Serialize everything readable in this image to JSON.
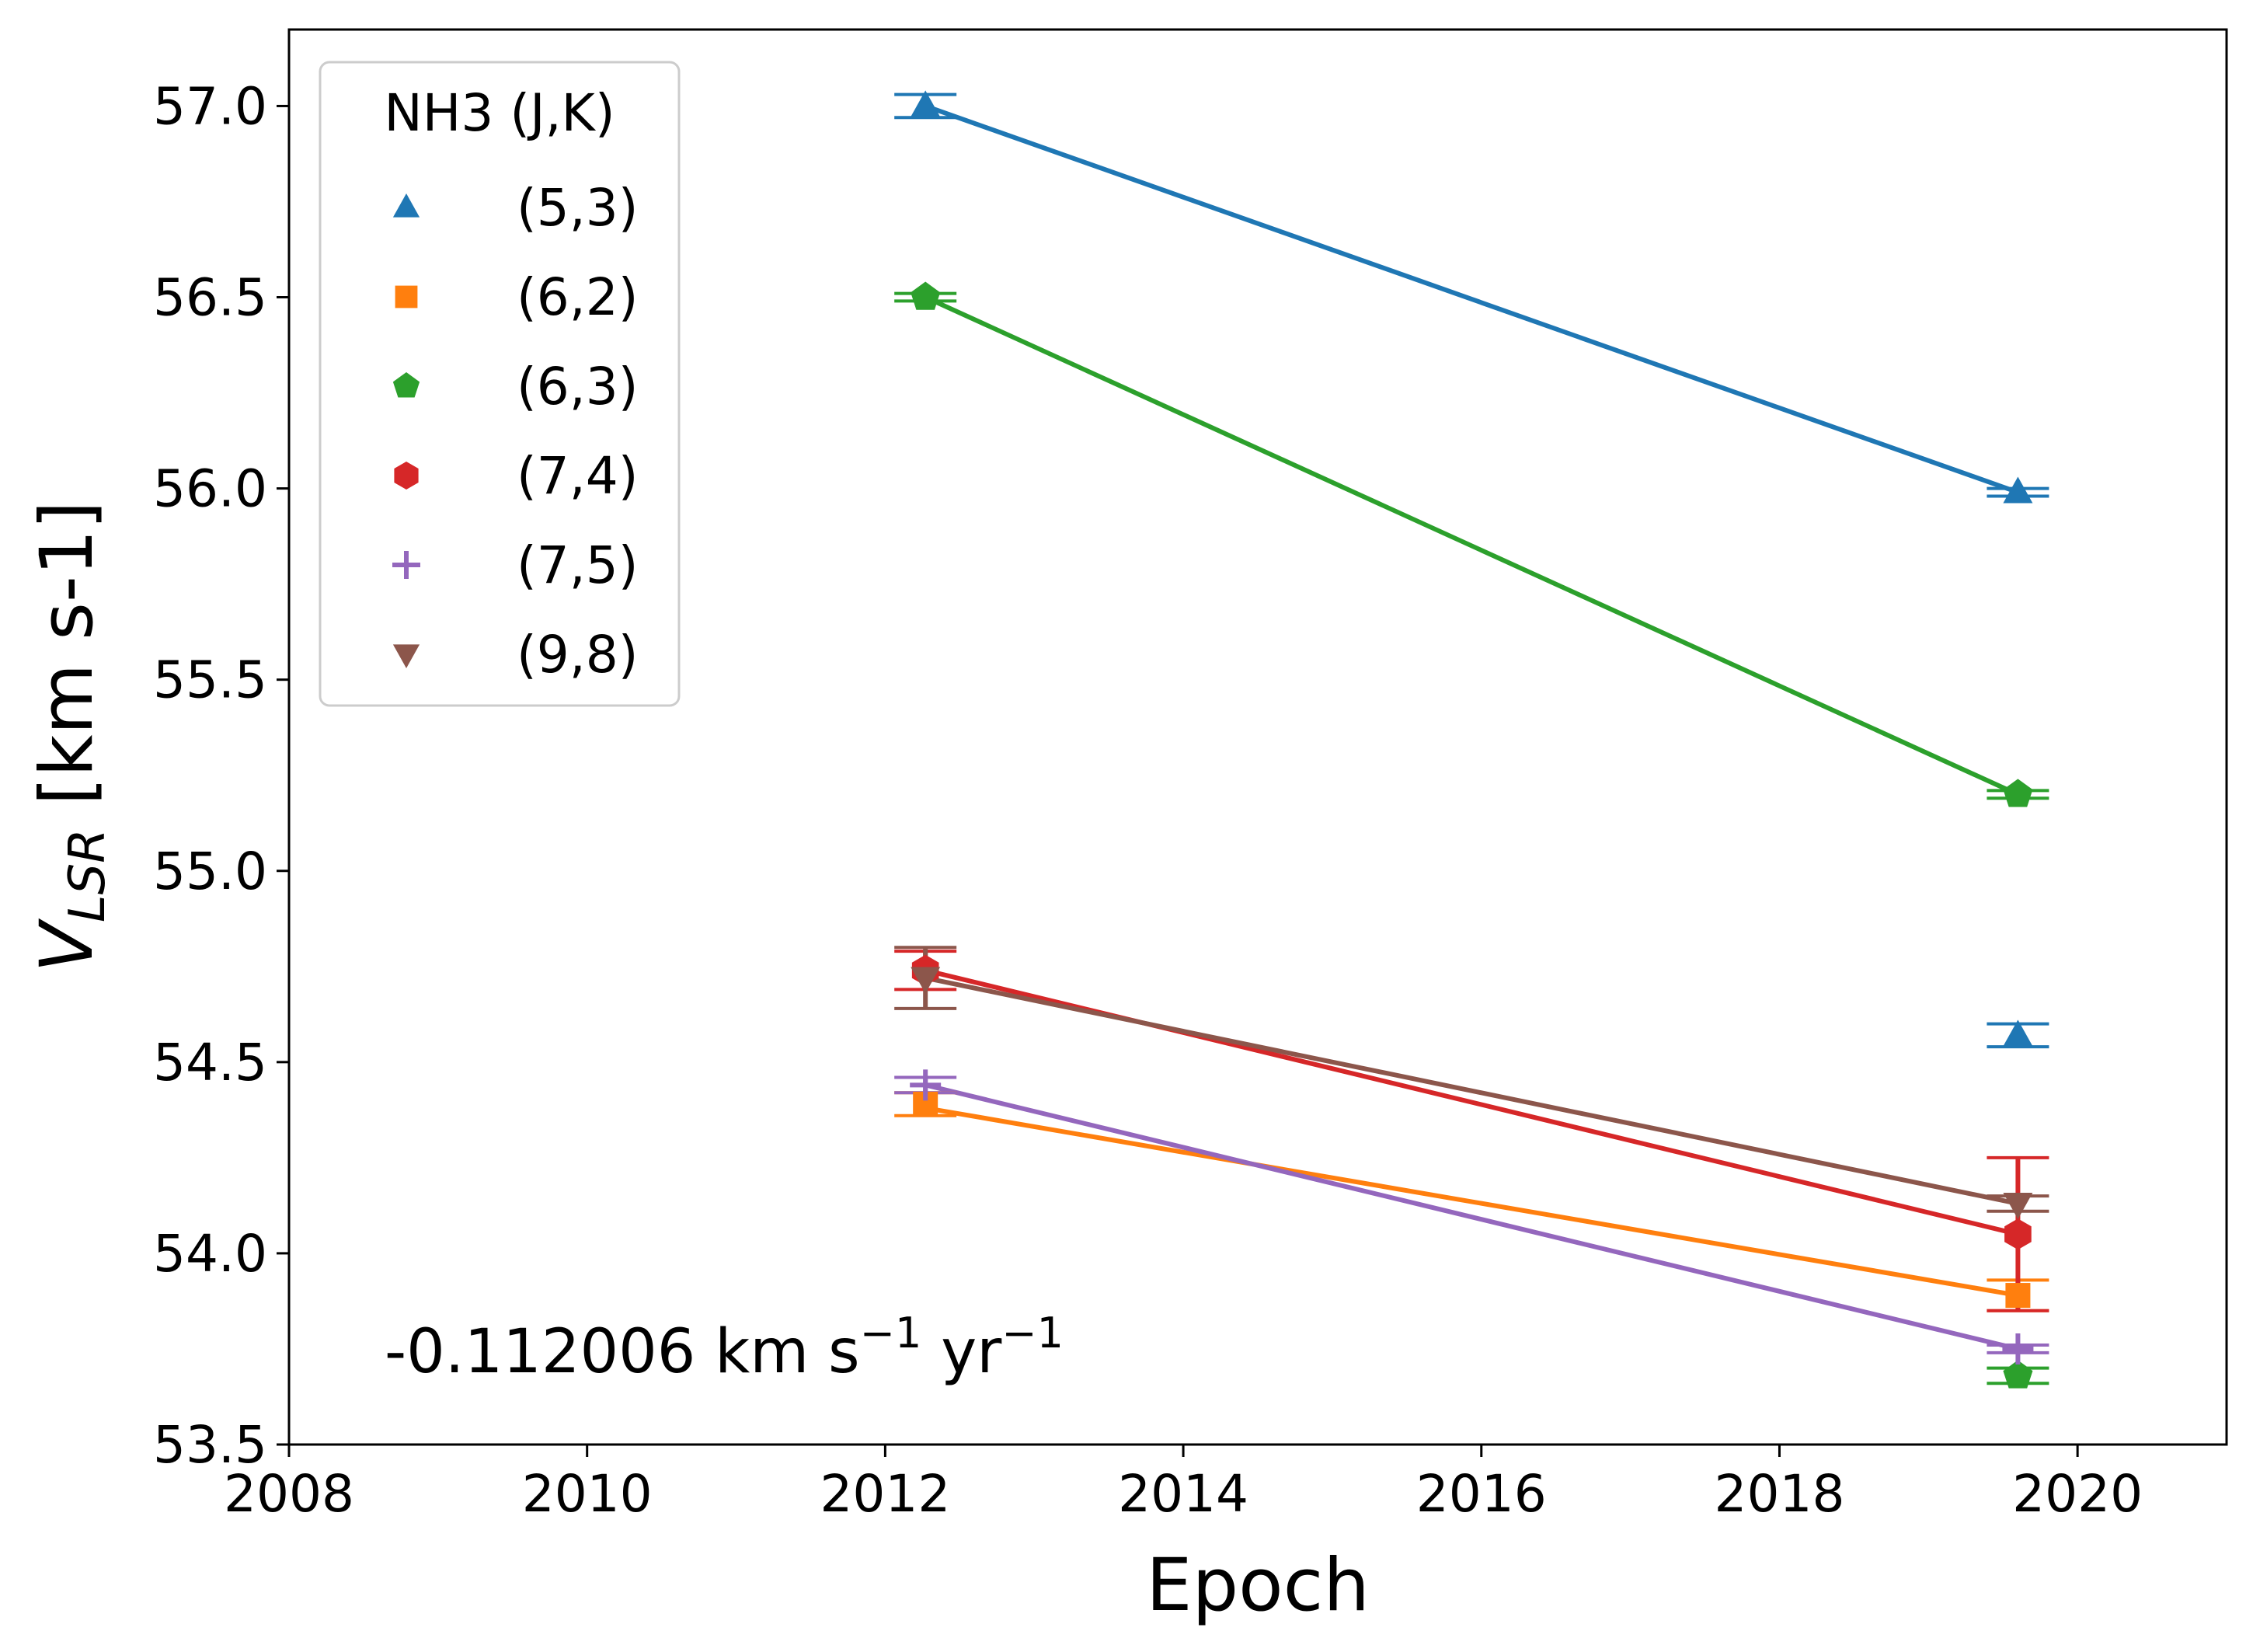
{
  "chart_data": {
    "type": "scatter",
    "xlabel": "Epoch",
    "ylabel": {
      "main": "V",
      "sub": "LSR",
      "units": " [km s-1]"
    },
    "xlim": [
      2008,
      2021
    ],
    "ylim": [
      53.5,
      57.2
    ],
    "xticks": [
      "2008",
      "2010",
      "2012",
      "2014",
      "2016",
      "2018",
      "2020"
    ],
    "yticks": [
      "53.5",
      "54.0",
      "54.5",
      "55.0",
      "55.5",
      "56.0",
      "56.5",
      "57.0"
    ],
    "legend": {
      "title": "NH3 (J,K)",
      "position": "top-left"
    },
    "annotation": {
      "prefix": "-0.112006 km s",
      "exp1": "−1",
      "mid": " yr",
      "exp2": "−1"
    },
    "series": [
      {
        "name": "(5,3)",
        "color": "#1f77b4",
        "marker": "triangle-up",
        "line": [
          [
            2012.27,
            57.0
          ],
          [
            2019.6,
            55.99
          ]
        ],
        "points": [
          {
            "x": 2012.27,
            "y": 57.0,
            "err": 0.03
          },
          {
            "x": 2019.6,
            "y": 55.99,
            "err": 0.01
          },
          {
            "x": 2019.6,
            "y": 54.57,
            "err": 0.03
          }
        ]
      },
      {
        "name": "(6,2)",
        "color": "#ff7f0e",
        "marker": "square",
        "line": [
          [
            2012.27,
            54.38
          ],
          [
            2019.6,
            53.89
          ]
        ],
        "points": [
          {
            "x": 2012.27,
            "y": 54.39,
            "err": 0.03
          },
          {
            "x": 2019.6,
            "y": 53.89,
            "err": 0.04
          }
        ]
      },
      {
        "name": "(6,3)",
        "color": "#2ca02c",
        "marker": "pentagon",
        "line": [
          [
            2012.27,
            56.5
          ],
          [
            2019.6,
            55.2
          ]
        ],
        "points": [
          {
            "x": 2012.27,
            "y": 56.5,
            "err": 0.01
          },
          {
            "x": 2019.6,
            "y": 55.2,
            "err": 0.01
          },
          {
            "x": 2019.6,
            "y": 53.68,
            "err": 0.02
          }
        ]
      },
      {
        "name": "(7,4)",
        "color": "#d62728",
        "marker": "hexagon",
        "line": [
          [
            2012.27,
            54.74
          ],
          [
            2019.6,
            54.05
          ]
        ],
        "points": [
          {
            "x": 2012.27,
            "y": 54.74,
            "err": 0.05
          },
          {
            "x": 2019.6,
            "y": 54.05,
            "err": 0.2
          }
        ]
      },
      {
        "name": "(7,5)",
        "color": "#9467bd",
        "marker": "plus",
        "line": [
          [
            2012.27,
            54.44
          ],
          [
            2019.6,
            53.75
          ]
        ],
        "points": [
          {
            "x": 2012.27,
            "y": 54.44,
            "err": 0.02
          },
          {
            "x": 2019.6,
            "y": 53.75,
            "err": 0.01
          }
        ]
      },
      {
        "name": "(9,8)",
        "color": "#8c564b",
        "marker": "triangle-down",
        "line": [
          [
            2012.27,
            54.72
          ],
          [
            2019.6,
            54.13
          ]
        ],
        "points": [
          {
            "x": 2012.27,
            "y": 54.72,
            "err": 0.08
          },
          {
            "x": 2019.6,
            "y": 54.13,
            "err": 0.02
          }
        ]
      }
    ]
  }
}
